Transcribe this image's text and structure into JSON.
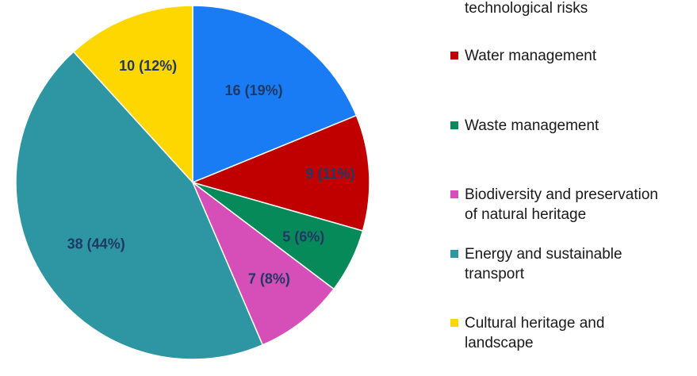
{
  "chart_data": {
    "type": "pie",
    "categories": [
      "technological risks",
      "Water management",
      "Waste management",
      "Biodiversity and preservation of natural heritage",
      "Energy and sustainable transport",
      "Cultural heritage and landscape"
    ],
    "values": [
      16,
      9,
      5,
      7,
      38,
      10
    ],
    "value_labels": [
      "16 (19%)",
      "9  (11%)",
      "5 (6%)",
      "7 (8%)",
      "38 (44%)",
      "10 (12%)"
    ],
    "colors": [
      "#1a7cf5",
      "#c00000",
      "#078a5a",
      "#d64fb8",
      "#2e96a3",
      "#ffd700"
    ]
  }
}
